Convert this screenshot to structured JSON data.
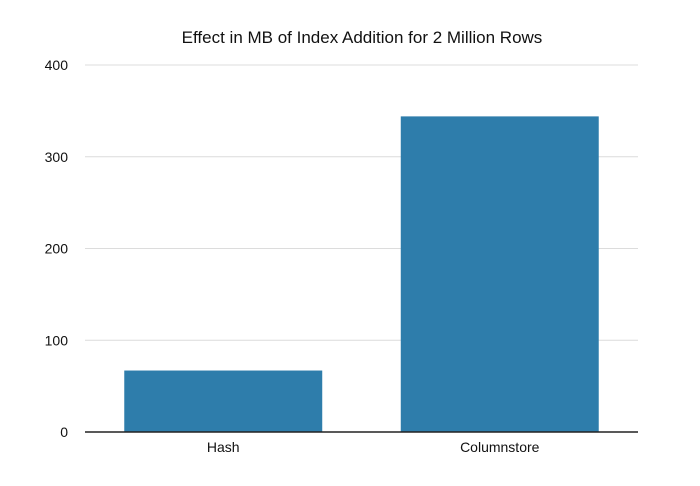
{
  "chart_data": {
    "type": "bar",
    "title": "Effect in MB of Index Addition for 2 Million Rows",
    "xlabel": "",
    "ylabel": "",
    "categories": [
      "Hash",
      "Columnstore"
    ],
    "series": [
      {
        "values": [
          67,
          344
        ]
      }
    ],
    "ylim": [
      0,
      400
    ],
    "yticks": [
      0,
      100,
      200,
      300,
      400
    ],
    "grid": true,
    "legend": "none",
    "colors": {
      "bar": "#2e7dab"
    }
  }
}
